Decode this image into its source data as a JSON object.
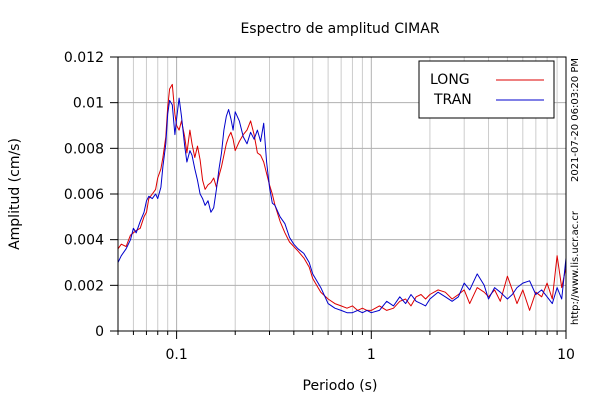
{
  "chart_data": {
    "type": "line",
    "title": "Espectro de amplitud CIMAR",
    "xlabel": "Periodo (s)",
    "ylabel": "Amplitud (cm/s)",
    "x_scale": "log",
    "xlim": [
      0.05,
      10
    ],
    "ylim": [
      0,
      0.012
    ],
    "grid": true,
    "legend_position": "top-right",
    "x_ticks": [
      {
        "value": 0.1,
        "label": "0.1"
      },
      {
        "value": 1,
        "label": "1"
      },
      {
        "value": 10,
        "label": "10"
      }
    ],
    "y_ticks": [
      {
        "value": 0,
        "label": "0"
      },
      {
        "value": 0.002,
        "label": "0.002"
      },
      {
        "value": 0.004,
        "label": "0.004"
      },
      {
        "value": 0.006,
        "label": "0.006"
      },
      {
        "value": 0.008,
        "label": "0.008"
      },
      {
        "value": 0.01,
        "label": "0.01"
      },
      {
        "value": 0.012,
        "label": "0.012"
      }
    ],
    "series": [
      {
        "name": "LONG",
        "color": "#dd0000",
        "x": [
          0.05,
          0.052,
          0.055,
          0.058,
          0.06,
          0.062,
          0.065,
          0.068,
          0.07,
          0.072,
          0.075,
          0.078,
          0.08,
          0.083,
          0.085,
          0.088,
          0.09,
          0.092,
          0.095,
          0.098,
          0.1,
          0.103,
          0.106,
          0.11,
          0.113,
          0.117,
          0.12,
          0.124,
          0.128,
          0.132,
          0.136,
          0.14,
          0.145,
          0.15,
          0.155,
          0.16,
          0.165,
          0.17,
          0.175,
          0.18,
          0.185,
          0.19,
          0.195,
          0.2,
          0.21,
          0.22,
          0.23,
          0.24,
          0.25,
          0.26,
          0.27,
          0.28,
          0.29,
          0.3,
          0.31,
          0.32,
          0.34,
          0.36,
          0.38,
          0.4,
          0.42,
          0.45,
          0.48,
          0.5,
          0.55,
          0.6,
          0.65,
          0.7,
          0.75,
          0.8,
          0.85,
          0.9,
          0.95,
          1.0,
          1.1,
          1.2,
          1.3,
          1.4,
          1.5,
          1.6,
          1.7,
          1.8,
          1.9,
          2.0,
          2.2,
          2.4,
          2.6,
          2.8,
          3.0,
          3.2,
          3.5,
          3.8,
          4.0,
          4.3,
          4.6,
          5.0,
          5.3,
          5.6,
          6.0,
          6.5,
          7.0,
          7.5,
          8.0,
          8.5,
          9.0,
          9.5,
          10.0
        ],
        "y": [
          0.0036,
          0.0038,
          0.0037,
          0.0042,
          0.0043,
          0.0044,
          0.0045,
          0.005,
          0.0052,
          0.0058,
          0.006,
          0.0062,
          0.0067,
          0.0071,
          0.0076,
          0.0085,
          0.0098,
          0.0106,
          0.0108,
          0.0095,
          0.009,
          0.0088,
          0.0092,
          0.0085,
          0.0078,
          0.0088,
          0.0082,
          0.0076,
          0.0081,
          0.0075,
          0.0066,
          0.0062,
          0.0064,
          0.0065,
          0.0067,
          0.0063,
          0.0068,
          0.0072,
          0.0077,
          0.0082,
          0.0085,
          0.0087,
          0.0084,
          0.0079,
          0.0083,
          0.0086,
          0.0088,
          0.0092,
          0.0086,
          0.0078,
          0.0077,
          0.0074,
          0.0069,
          0.0064,
          0.006,
          0.0055,
          0.0048,
          0.0043,
          0.0039,
          0.0037,
          0.0035,
          0.0032,
          0.0028,
          0.0023,
          0.0017,
          0.0014,
          0.0012,
          0.0011,
          0.001,
          0.0011,
          0.0009,
          0.001,
          0.0009,
          0.0009,
          0.0011,
          0.0009,
          0.001,
          0.0013,
          0.0014,
          0.0011,
          0.0015,
          0.0016,
          0.0014,
          0.0016,
          0.0018,
          0.0017,
          0.0014,
          0.0016,
          0.0018,
          0.0012,
          0.0019,
          0.0017,
          0.0015,
          0.0018,
          0.0013,
          0.0024,
          0.0018,
          0.0012,
          0.0018,
          0.0009,
          0.0017,
          0.0015,
          0.0021,
          0.0014,
          0.0033,
          0.0019,
          0.0028
        ]
      },
      {
        "name": "TRAN",
        "color": "#0000cc",
        "x": [
          0.05,
          0.052,
          0.055,
          0.058,
          0.06,
          0.062,
          0.065,
          0.068,
          0.07,
          0.072,
          0.075,
          0.078,
          0.08,
          0.083,
          0.085,
          0.088,
          0.09,
          0.092,
          0.095,
          0.098,
          0.1,
          0.103,
          0.106,
          0.11,
          0.113,
          0.117,
          0.12,
          0.124,
          0.128,
          0.132,
          0.136,
          0.14,
          0.145,
          0.15,
          0.155,
          0.16,
          0.165,
          0.17,
          0.175,
          0.18,
          0.185,
          0.19,
          0.195,
          0.2,
          0.21,
          0.22,
          0.23,
          0.24,
          0.25,
          0.26,
          0.27,
          0.28,
          0.29,
          0.3,
          0.31,
          0.32,
          0.34,
          0.36,
          0.38,
          0.4,
          0.42,
          0.45,
          0.48,
          0.5,
          0.55,
          0.6,
          0.65,
          0.7,
          0.75,
          0.8,
          0.85,
          0.9,
          0.95,
          1.0,
          1.1,
          1.2,
          1.3,
          1.4,
          1.5,
          1.6,
          1.7,
          1.8,
          1.9,
          2.0,
          2.2,
          2.4,
          2.6,
          2.8,
          3.0,
          3.2,
          3.5,
          3.8,
          4.0,
          4.3,
          4.6,
          5.0,
          5.3,
          5.6,
          6.0,
          6.5,
          7.0,
          7.5,
          8.0,
          8.5,
          9.0,
          9.5,
          10.0
        ],
        "y": [
          0.003,
          0.0033,
          0.0036,
          0.004,
          0.0045,
          0.0043,
          0.0048,
          0.0052,
          0.0057,
          0.0059,
          0.0058,
          0.006,
          0.0058,
          0.0063,
          0.0072,
          0.0082,
          0.0095,
          0.0101,
          0.0099,
          0.0086,
          0.0093,
          0.0102,
          0.0094,
          0.0081,
          0.0074,
          0.0079,
          0.0077,
          0.0071,
          0.0066,
          0.006,
          0.0058,
          0.0055,
          0.0057,
          0.0052,
          0.0054,
          0.0062,
          0.0071,
          0.0078,
          0.0088,
          0.0094,
          0.0097,
          0.0093,
          0.0088,
          0.0096,
          0.0092,
          0.0085,
          0.0082,
          0.0087,
          0.0084,
          0.0088,
          0.0083,
          0.0091,
          0.0074,
          0.0063,
          0.0056,
          0.0055,
          0.005,
          0.0047,
          0.0041,
          0.0038,
          0.0036,
          0.0034,
          0.003,
          0.0025,
          0.0019,
          0.0012,
          0.001,
          0.0009,
          0.0008,
          0.0008,
          0.0009,
          0.0008,
          0.0009,
          0.0008,
          0.0009,
          0.0013,
          0.0011,
          0.0015,
          0.0012,
          0.0016,
          0.0013,
          0.0012,
          0.0011,
          0.0014,
          0.0017,
          0.0015,
          0.0013,
          0.0015,
          0.0021,
          0.0018,
          0.0025,
          0.002,
          0.0014,
          0.0019,
          0.0017,
          0.0014,
          0.0016,
          0.0019,
          0.0021,
          0.0022,
          0.0016,
          0.0018,
          0.0015,
          0.0012,
          0.0019,
          0.0014,
          0.0032
        ]
      }
    ],
    "side_labels": {
      "timestamp": "2021-07-20 06:03:20 PM",
      "website": "http://www.lis.ucr.ac.cr"
    }
  }
}
